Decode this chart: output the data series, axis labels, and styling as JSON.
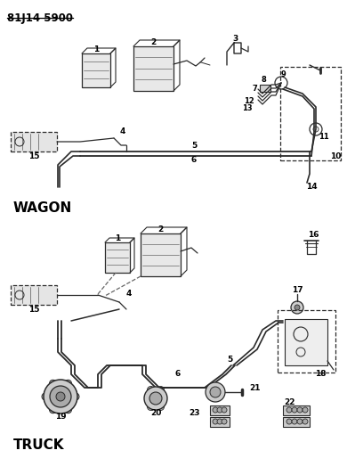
{
  "title": "81J14 5900",
  "wagon_label": "WAGON",
  "truck_label": "TRUCK",
  "bg_color": "#ffffff",
  "lc": "#2a2a2a",
  "tc": "#000000",
  "figsize": [
    3.9,
    5.33
  ],
  "dpi": 100
}
